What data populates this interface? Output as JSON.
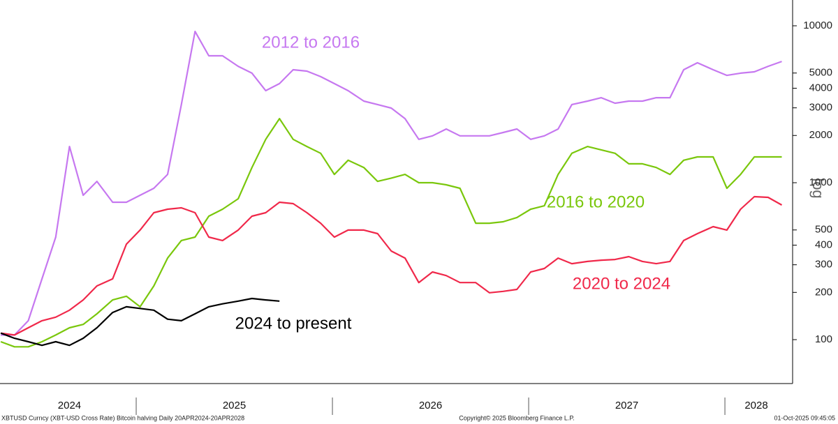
{
  "chart_data": {
    "type": "line",
    "log_scale": true,
    "ylabel": "log",
    "x": [
      2024.31,
      2024.38,
      2024.45,
      2024.52,
      2024.59,
      2024.66,
      2024.73,
      2024.8,
      2024.88,
      2024.95,
      2025.02,
      2025.09,
      2025.16,
      2025.23,
      2025.3,
      2025.37,
      2025.44,
      2025.52,
      2025.59,
      2025.66,
      2025.73,
      2025.8,
      2025.87,
      2025.94,
      2026.01,
      2026.08,
      2026.16,
      2026.23,
      2026.3,
      2026.37,
      2026.44,
      2026.51,
      2026.58,
      2026.65,
      2026.73,
      2026.8,
      2026.87,
      2026.94,
      2027.01,
      2027.08,
      2027.15,
      2027.22,
      2027.3,
      2027.37,
      2027.44,
      2027.51,
      2027.58,
      2027.65,
      2027.72,
      2027.79,
      2027.86,
      2027.94,
      2028.01,
      2028.08,
      2028.15,
      2028.22,
      2028.29
    ],
    "series": [
      {
        "name": "2012 to 2016",
        "color": "#c678f0",
        "values": [
          107,
          107,
          132,
          244,
          450,
          1700,
          832,
          1020,
          751,
          751,
          832,
          921,
          1130,
          3150,
          9200,
          6440,
          6440,
          5520,
          4990,
          3860,
          4280,
          5250,
          5140,
          4740,
          4280,
          3860,
          3310,
          3150,
          2990,
          2560,
          1890,
          1990,
          2200,
          1990,
          1990,
          1990,
          2090,
          2200,
          1890,
          1990,
          2200,
          3150,
          3310,
          3480,
          3210,
          3310,
          3310,
          3480,
          3480,
          5250,
          5810,
          5250,
          4830,
          4990,
          5090,
          5520,
          5930
        ]
      },
      {
        "name": "2016 to 2020",
        "color": "#7ac70c",
        "values": [
          97,
          90,
          90,
          97,
          107,
          119,
          125,
          146,
          179,
          189,
          162,
          220,
          331,
          428,
          450,
          612,
          678,
          790,
          1250,
          1890,
          2560,
          1890,
          1700,
          1540,
          1130,
          1390,
          1250,
          1020,
          1070,
          1130,
          1000,
          1000,
          970,
          921,
          552,
          552,
          564,
          600,
          678,
          713,
          1130,
          1540,
          1700,
          1620,
          1540,
          1320,
          1320,
          1250,
          1130,
          1390,
          1460,
          1460,
          921,
          1130,
          1460,
          1460,
          1460
        ]
      },
      {
        "name": "2020 to 2024",
        "color": "#f0284a",
        "values": [
          110,
          107,
          119,
          132,
          139,
          154,
          179,
          220,
          244,
          406,
          499,
          644,
          678,
          692,
          644,
          450,
          428,
          499,
          612,
          644,
          751,
          736,
          644,
          552,
          450,
          499,
          499,
          474,
          367,
          331,
          231,
          270,
          256,
          231,
          231,
          199,
          203,
          209,
          270,
          284,
          331,
          305,
          315,
          321,
          324,
          338,
          315,
          305,
          315,
          428,
          474,
          525,
          499,
          678,
          815,
          807,
          721
        ]
      },
      {
        "name": "2024 to present",
        "color": "#000000",
        "values": [
          110,
          102,
          97,
          92,
          97,
          92,
          102,
          119,
          149,
          162,
          158,
          154,
          135,
          132,
          146,
          162,
          169,
          176,
          183,
          179,
          176,
          null,
          null,
          null,
          null,
          null,
          null,
          null,
          null,
          null,
          null,
          null,
          null,
          null,
          null,
          null,
          null,
          null,
          null,
          null,
          null,
          null,
          null,
          null,
          null,
          null,
          null,
          null,
          null,
          null,
          null,
          null,
          null,
          null,
          null,
          null,
          null
        ]
      }
    ],
    "xlim": [
      2024.306,
      2028.345
    ],
    "xticks": [
      {
        "value": 2024.66,
        "label": "2024"
      },
      {
        "value": 2025.5,
        "label": "2025"
      },
      {
        "value": 2026.5,
        "label": "2026"
      },
      {
        "value": 2027.5,
        "label": "2027"
      },
      {
        "value": 2028.16,
        "label": "2028"
      }
    ],
    "year_boundaries": [
      2025,
      2026,
      2027,
      2028
    ],
    "ylim": [
      52.5,
      14600
    ],
    "yticks": [
      100,
      200,
      300,
      400,
      500,
      1000,
      2000,
      3000,
      4000,
      5000,
      10000
    ],
    "footer": {
      "left": "XBTUSD Curncy (XBT-USD Cross Rate) Bitcoin halving  Daily 20APR2024-20APR2028",
      "center": "Copyright© 2025 Bloomberg Finance L.P.",
      "right": "01-Oct-2025 09:45:05"
    }
  }
}
